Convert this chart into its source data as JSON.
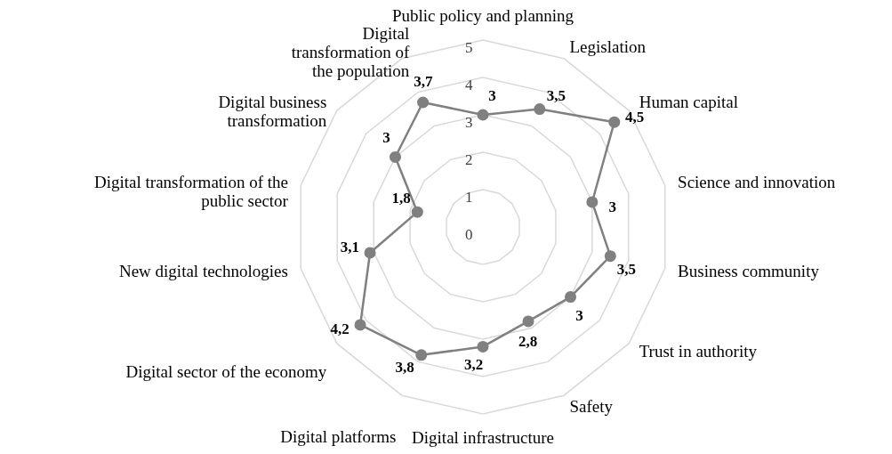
{
  "chart_data": {
    "type": "radar",
    "categories": [
      "Public policy and planning",
      "Legislation",
      "Human capital",
      "Science and innovation",
      "Business community",
      "Trust in authority",
      "Safety",
      "Digital infrastructure",
      "Digital platforms",
      "Digital sector of the economy",
      "New digital technologies",
      "Digital transformation of the public sector",
      "Digital business transformation",
      "Digital transformation of the population"
    ],
    "series": [
      {
        "color": "#808080",
        "values": [
          3,
          3.5,
          4.5,
          3,
          3.5,
          3,
          2.8,
          3.2,
          3.8,
          4.2,
          3.1,
          1.8,
          3,
          3.7
        ],
        "value_labels": [
          "3",
          "3,5",
          "4,5",
          "3",
          "3,5",
          "3",
          "2,8",
          "3,2",
          "3,8",
          "4,2",
          "3,1",
          "1,8",
          "3",
          "3,7"
        ]
      }
    ],
    "ylim": [
      0,
      5
    ],
    "yticks": [
      0,
      1,
      2,
      3,
      4,
      5
    ],
    "grid": true,
    "marker": "circle"
  }
}
